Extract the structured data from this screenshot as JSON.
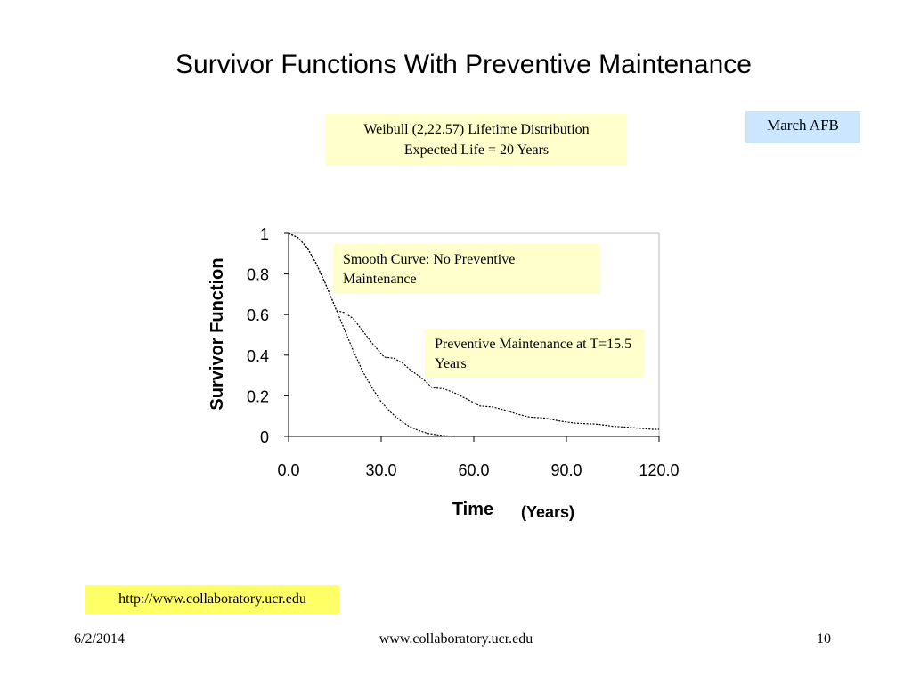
{
  "slide": {
    "title": "Survivor Functions With Preventive Maintenance",
    "distribution_line1": "Weibull (2,22.57) Lifetime Distribution",
    "distribution_line2": "Expected Life = 20 Years",
    "site_label": "March AFB",
    "url_label": "http://www.collaboratory.ucr.edu",
    "footer": {
      "date": "6/2/2014",
      "site": "www.collaboratory.ucr.edu",
      "page": "10"
    }
  },
  "chart_data": {
    "type": "line",
    "title": "",
    "xlabel": "Time",
    "xunit": "(Years)",
    "ylabel": "Survivor Function",
    "xlim": [
      0,
      120
    ],
    "ylim": [
      0,
      1
    ],
    "x_ticks": [
      0,
      30,
      60,
      90,
      120
    ],
    "x_tick_labels": [
      "0.0",
      "30.0",
      "60.0",
      "90.0",
      "120.0"
    ],
    "y_ticks": [
      0,
      0.2,
      0.4,
      0.6,
      0.8,
      1
    ],
    "y_tick_labels": [
      "0",
      "0.2",
      "0.4",
      "0.6",
      "0.8",
      "1"
    ],
    "grid": false,
    "series": [
      {
        "x": [
          0,
          3,
          6,
          9,
          12,
          15,
          18,
          21,
          24,
          27,
          30,
          33,
          36,
          39,
          42,
          45,
          48,
          51,
          54
        ],
        "y": [
          1.0,
          0.98,
          0.93,
          0.85,
          0.75,
          0.64,
          0.53,
          0.42,
          0.32,
          0.24,
          0.17,
          0.12,
          0.08,
          0.05,
          0.03,
          0.015,
          0.008,
          0.003,
          0.0
        ]
      },
      {
        "x": [
          0,
          3,
          6,
          9,
          12,
          15,
          15.5,
          18,
          21,
          24,
          27,
          31,
          34,
          37,
          40,
          43,
          46.5,
          50,
          53,
          57,
          62,
          66,
          70,
          74,
          78,
          83,
          88,
          93,
          100,
          105,
          110,
          114,
          118,
          120
        ],
        "y": [
          1.0,
          0.98,
          0.93,
          0.85,
          0.75,
          0.64,
          0.62,
          0.61,
          0.58,
          0.52,
          0.46,
          0.39,
          0.385,
          0.36,
          0.32,
          0.29,
          0.24,
          0.235,
          0.22,
          0.19,
          0.15,
          0.145,
          0.13,
          0.11,
          0.095,
          0.09,
          0.075,
          0.065,
          0.06,
          0.05,
          0.045,
          0.04,
          0.035,
          0.035
        ]
      }
    ],
    "annotations": [
      "Smooth Curve:  No Preventive Maintenance",
      "Preventive Maintenance at T=15.5 Years"
    ]
  }
}
